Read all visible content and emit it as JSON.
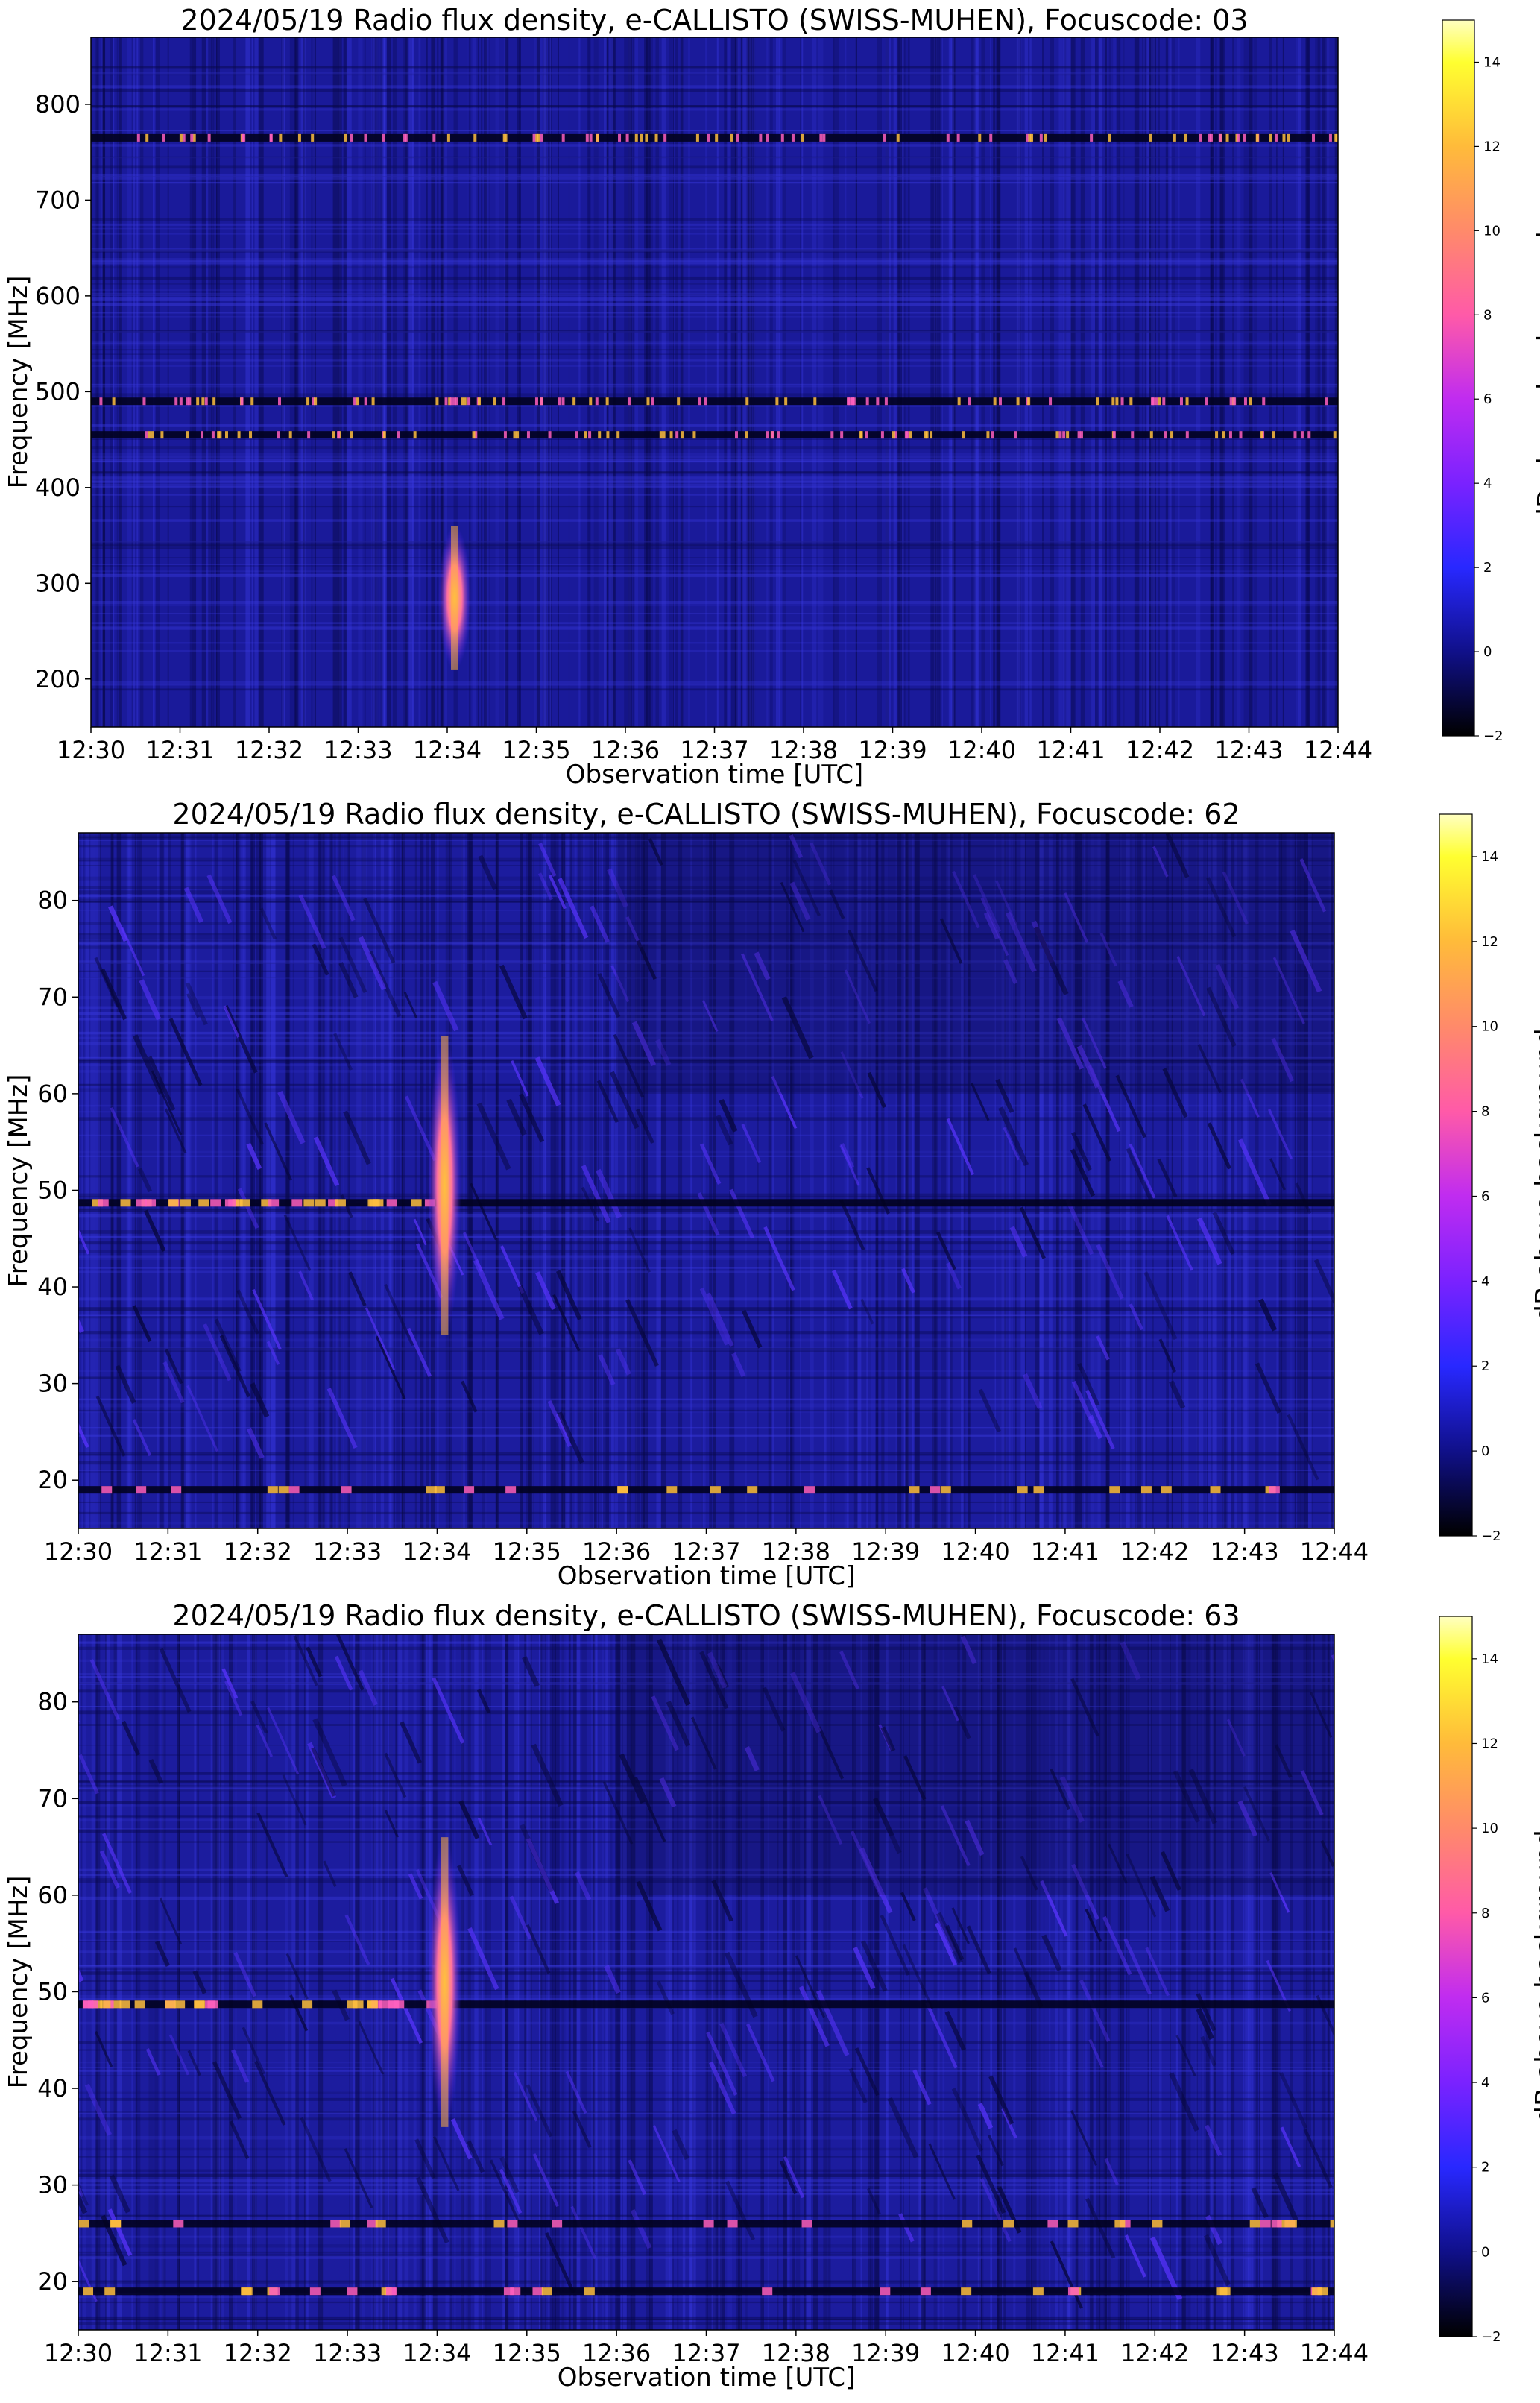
{
  "chart_data": [
    {
      "type": "heatmap",
      "title": "2024/05/19  Radio flux density, e-CALLISTO (SWISS-MUHEN), Focuscode: 03",
      "xlabel": "Observation time [UTC]",
      "ylabel": "Frequency [MHz]",
      "x_ticks": [
        "12:30",
        "12:31",
        "12:32",
        "12:33",
        "12:34",
        "12:35",
        "12:36",
        "12:37",
        "12:38",
        "12:39",
        "12:40",
        "12:41",
        "12:42",
        "12:43",
        "12:44"
      ],
      "y_ticks": [
        200,
        300,
        400,
        500,
        600,
        700,
        800
      ],
      "ylim": [
        150,
        870
      ],
      "colorbar": {
        "label": "dB above background",
        "ticks": [
          -2,
          0,
          2,
          4,
          6,
          8,
          10,
          12,
          14
        ],
        "range": [
          -2,
          15
        ],
        "colormap": "gnuplot2"
      },
      "burst": {
        "time": "12:34",
        "freq_range": [
          210,
          360
        ]
      },
      "bright_bands_mhz": [
        765,
        490,
        455
      ]
    },
    {
      "type": "heatmap",
      "title": "2024/05/19  Radio flux density, e-CALLISTO (SWISS-MUHEN), Focuscode: 62",
      "xlabel": "Observation time [UTC]",
      "ylabel": "Frequency [MHz]",
      "x_ticks": [
        "12:30",
        "12:31",
        "12:32",
        "12:33",
        "12:34",
        "12:35",
        "12:36",
        "12:37",
        "12:38",
        "12:39",
        "12:40",
        "12:41",
        "12:42",
        "12:43",
        "12:44"
      ],
      "y_ticks": [
        20,
        30,
        40,
        50,
        60,
        70,
        80
      ],
      "ylim": [
        15,
        87
      ],
      "colorbar": {
        "label": "dB above background",
        "ticks": [
          -2,
          0,
          2,
          4,
          6,
          8,
          10,
          12,
          14
        ],
        "range": [
          -2,
          15
        ],
        "colormap": "gnuplot2"
      },
      "burst": {
        "time": "12:34",
        "freq_range": [
          35,
          66
        ]
      },
      "bright_bands_mhz": [
        48.7,
        19
      ]
    },
    {
      "type": "heatmap",
      "title": "2024/05/19  Radio flux density, e-CALLISTO (SWISS-MUHEN), Focuscode: 63",
      "xlabel": "Observation time [UTC]",
      "ylabel": "Frequency [MHz]",
      "x_ticks": [
        "12:30",
        "12:31",
        "12:32",
        "12:33",
        "12:34",
        "12:35",
        "12:36",
        "12:37",
        "12:38",
        "12:39",
        "12:40",
        "12:41",
        "12:42",
        "12:43",
        "12:44"
      ],
      "y_ticks": [
        20,
        30,
        40,
        50,
        60,
        70,
        80
      ],
      "ylim": [
        15,
        87
      ],
      "colorbar": {
        "label": "dB above background",
        "ticks": [
          -2,
          0,
          2,
          4,
          6,
          8,
          10,
          12,
          14
        ],
        "range": [
          -2,
          15
        ],
        "colormap": "gnuplot2"
      },
      "burst": {
        "time": "12:34",
        "freq_range": [
          36,
          66
        ]
      },
      "bright_bands_mhz": [
        48.7,
        26,
        19
      ]
    }
  ]
}
